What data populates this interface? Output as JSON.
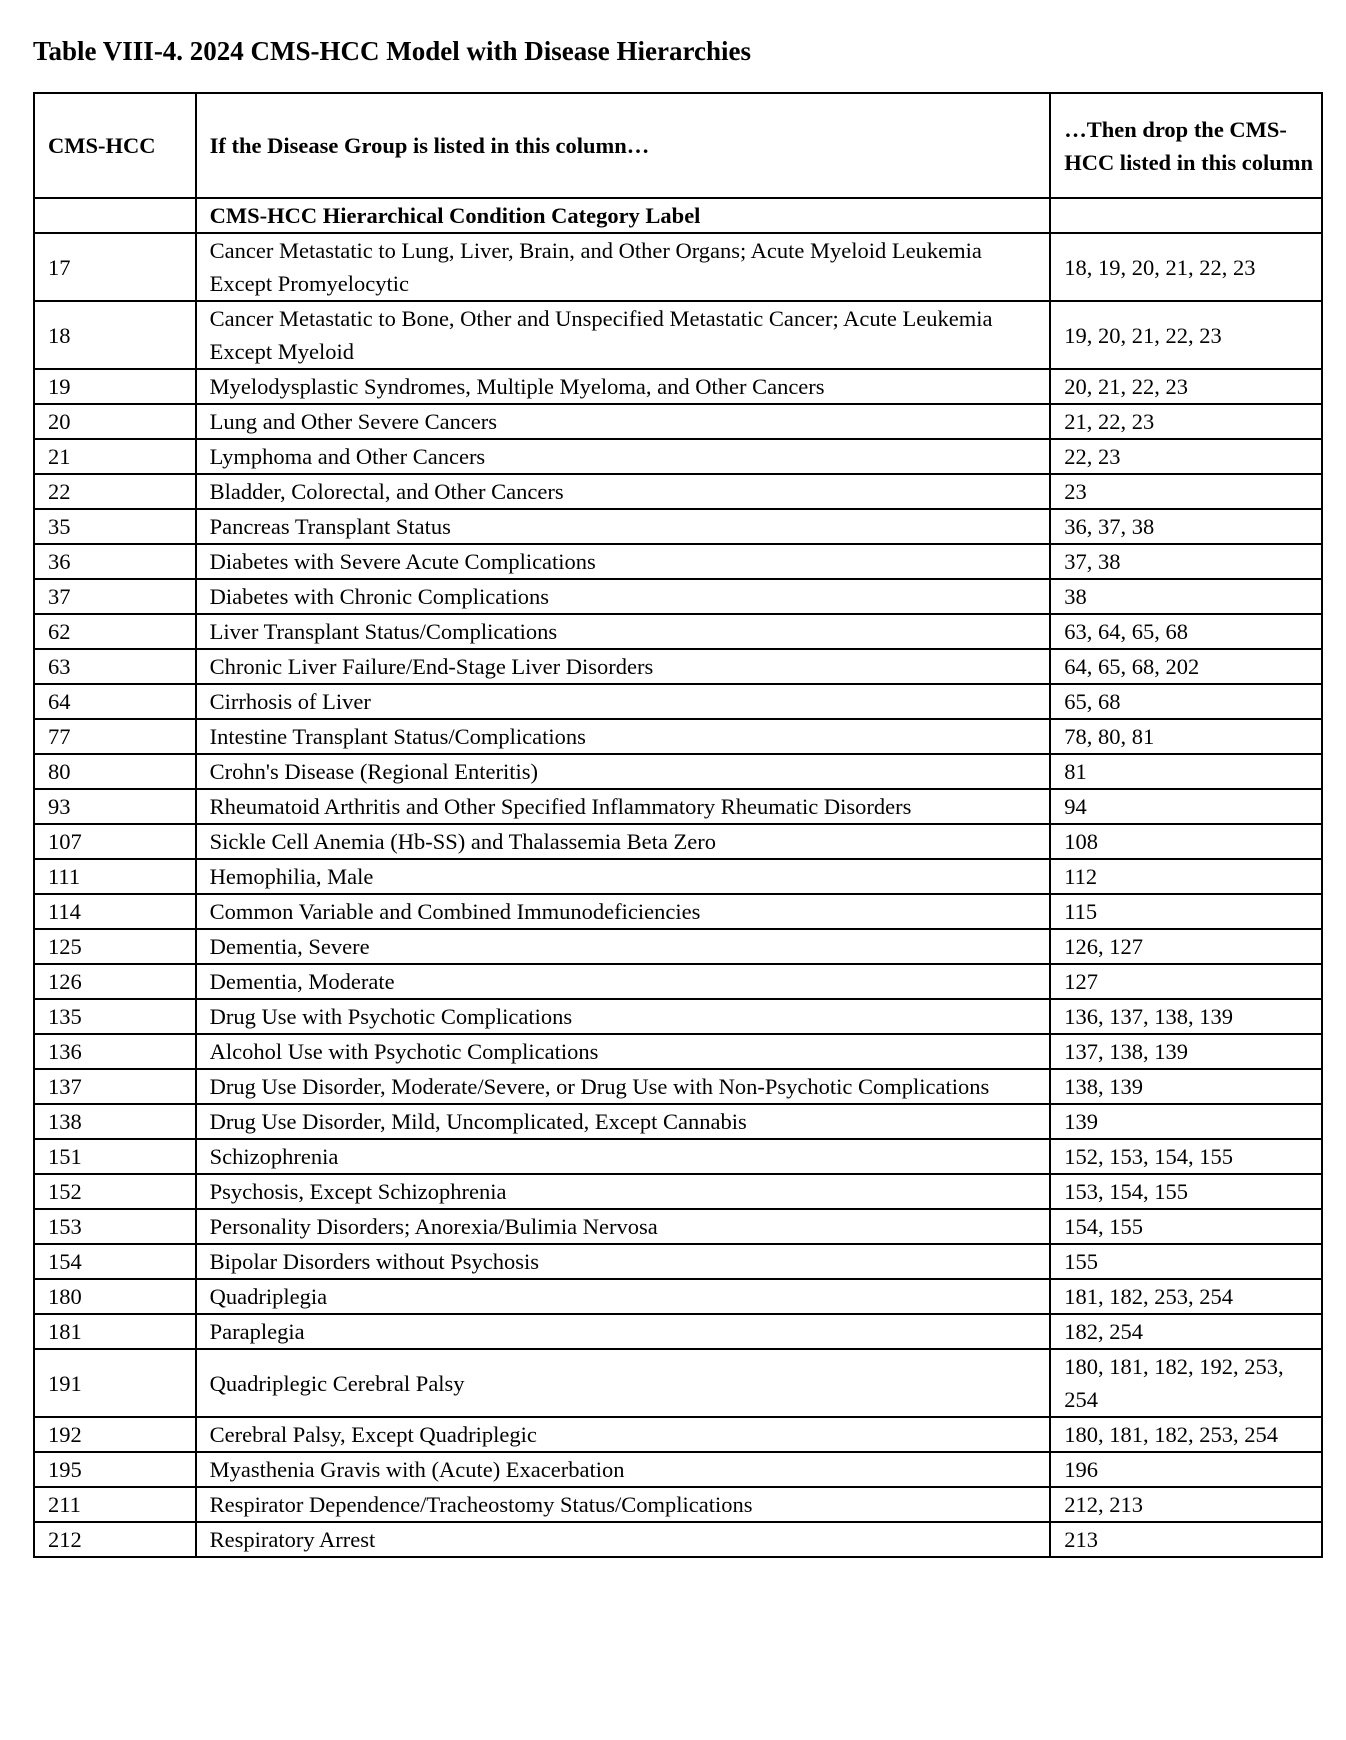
{
  "title": "Table VIII-4. 2024 CMS-HCC Model with Disease Hierarchies",
  "headers": {
    "col1": "CMS-HCC",
    "col2": "If the Disease Group is listed in this column…",
    "col3": "…Then drop the CMS-HCC listed in this column"
  },
  "label_row": {
    "col1": "",
    "col2": "CMS-HCC Hierarchical Condition Category Label",
    "col3": ""
  },
  "rows": [
    {
      "hcc": "17",
      "label": "Cancer Metastatic to Lung, Liver, Brain, and Other Organs; Acute Myeloid Leukemia Except Promyelocytic",
      "drop": "18, 19, 20, 21, 22, 23"
    },
    {
      "hcc": "18",
      "label": "Cancer Metastatic to Bone, Other and Unspecified Metastatic Cancer; Acute Leukemia Except Myeloid",
      "drop": "19, 20, 21, 22, 23"
    },
    {
      "hcc": "19",
      "label": "Myelodysplastic Syndromes, Multiple Myeloma, and Other Cancers",
      "drop": "20, 21, 22, 23"
    },
    {
      "hcc": "20",
      "label": "Lung and Other Severe Cancers",
      "drop": "21, 22, 23"
    },
    {
      "hcc": "21",
      "label": "Lymphoma and Other Cancers",
      "drop": "22, 23"
    },
    {
      "hcc": "22",
      "label": "Bladder, Colorectal, and Other Cancers",
      "drop": "23"
    },
    {
      "hcc": "35",
      "label": "Pancreas Transplant Status",
      "drop": "36, 37, 38"
    },
    {
      "hcc": "36",
      "label": "Diabetes with Severe Acute Complications",
      "drop": "37, 38"
    },
    {
      "hcc": "37",
      "label": "Diabetes with Chronic Complications",
      "drop": "38"
    },
    {
      "hcc": "62",
      "label": "Liver Transplant Status/Complications",
      "drop": "63, 64, 65, 68"
    },
    {
      "hcc": "63",
      "label": "Chronic Liver Failure/End-Stage Liver Disorders",
      "drop": "64, 65, 68, 202"
    },
    {
      "hcc": "64",
      "label": "Cirrhosis of Liver",
      "drop": "65, 68"
    },
    {
      "hcc": "77",
      "label": "Intestine Transplant Status/Complications",
      "drop": "78, 80, 81"
    },
    {
      "hcc": "80",
      "label": "Crohn's Disease (Regional Enteritis)",
      "drop": "81"
    },
    {
      "hcc": "93",
      "label": "Rheumatoid Arthritis and Other Specified Inflammatory Rheumatic Disorders",
      "drop": "94"
    },
    {
      "hcc": "107",
      "label": "Sickle Cell Anemia (Hb-SS) and Thalassemia Beta Zero",
      "drop": "108"
    },
    {
      "hcc": "111",
      "label": "Hemophilia, Male",
      "drop": "112"
    },
    {
      "hcc": "114",
      "label": "Common Variable and Combined Immunodeficiencies",
      "drop": "115"
    },
    {
      "hcc": "125",
      "label": "Dementia, Severe",
      "drop": "126, 127"
    },
    {
      "hcc": "126",
      "label": "Dementia, Moderate",
      "drop": "127"
    },
    {
      "hcc": "135",
      "label": "Drug Use with Psychotic Complications",
      "drop": "136, 137, 138, 139"
    },
    {
      "hcc": "136",
      "label": "Alcohol Use with Psychotic Complications",
      "drop": "137, 138, 139"
    },
    {
      "hcc": "137",
      "label": "Drug Use Disorder, Moderate/Severe, or Drug Use with Non-Psychotic Complications",
      "drop": "138, 139"
    },
    {
      "hcc": "138",
      "label": "Drug Use Disorder, Mild, Uncomplicated, Except Cannabis",
      "drop": "139"
    },
    {
      "hcc": "151",
      "label": "Schizophrenia",
      "drop": "152, 153, 154, 155"
    },
    {
      "hcc": "152",
      "label": "Psychosis, Except Schizophrenia",
      "drop": "153, 154, 155"
    },
    {
      "hcc": "153",
      "label": "Personality Disorders; Anorexia/Bulimia Nervosa",
      "drop": "154, 155"
    },
    {
      "hcc": "154",
      "label": "Bipolar Disorders without Psychosis",
      "drop": "155"
    },
    {
      "hcc": "180",
      "label": "Quadriplegia",
      "drop": "181, 182, 253, 254"
    },
    {
      "hcc": "181",
      "label": "Paraplegia",
      "drop": "182, 254"
    },
    {
      "hcc": "191",
      "label": "Quadriplegic Cerebral Palsy",
      "drop": "180, 181, 182, 192, 253, 254"
    },
    {
      "hcc": "192",
      "label": "Cerebral Palsy, Except Quadriplegic",
      "drop": "180, 181, 182, 253, 254"
    },
    {
      "hcc": "195",
      "label": "Myasthenia Gravis with (Acute) Exacerbation",
      "drop": "196"
    },
    {
      "hcc": "211",
      "label": "Respirator Dependence/Tracheostomy Status/Complications",
      "drop": "212, 213"
    },
    {
      "hcc": "212",
      "label": "Respiratory Arrest",
      "drop": "213"
    }
  ]
}
